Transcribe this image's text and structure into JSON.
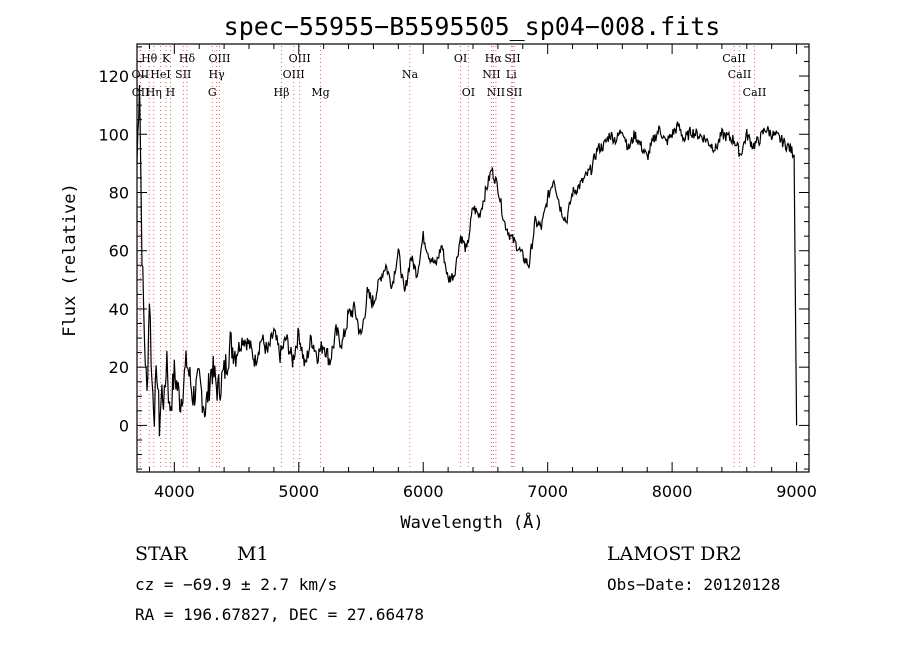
{
  "chart_data": {
    "type": "line",
    "title": "spec−55955−B5595505_sp04−008.fits",
    "xlabel": "Wavelength (Å)",
    "ylabel": "Flux (relative)",
    "xlim": [
      3700,
      9100
    ],
    "ylim": [
      -16,
      131
    ],
    "x_ticks": [
      4000,
      5000,
      6000,
      7000,
      8000,
      9000
    ],
    "y_ticks": [
      0,
      20,
      40,
      60,
      80,
      100,
      120
    ],
    "grid": false,
    "series": [
      {
        "x": [
          3700,
          3720,
          3740,
          3760,
          3780,
          3800,
          3820,
          3840,
          3860,
          3880,
          3900,
          3920,
          3940,
          3960,
          3980,
          4000,
          4050,
          4100,
          4150,
          4200,
          4250,
          4300,
          4350,
          4400,
          4450,
          4500,
          4550,
          4600,
          4650,
          4700,
          4750,
          4800,
          4850,
          4900,
          4950,
          5000,
          5050,
          5100,
          5150,
          5200,
          5250,
          5300,
          5350,
          5400,
          5450,
          5500,
          5550,
          5600,
          5650,
          5700,
          5750,
          5800,
          5850,
          5900,
          5950,
          6000,
          6050,
          6100,
          6150,
          6200,
          6250,
          6300,
          6350,
          6400,
          6450,
          6500,
          6550,
          6600,
          6650,
          6700,
          6750,
          6800,
          6850,
          6900,
          6950,
          7000,
          7050,
          7100,
          7150,
          7200,
          7250,
          7300,
          7350,
          7400,
          7450,
          7500,
          7550,
          7600,
          7650,
          7700,
          7750,
          7800,
          7850,
          7900,
          7950,
          8000,
          8050,
          8100,
          8150,
          8200,
          8250,
          8300,
          8350,
          8400,
          8450,
          8500,
          8550,
          8600,
          8650,
          8700,
          8750,
          8800,
          8850,
          8900,
          8950,
          8980,
          9000
        ],
        "y": [
          90,
          120,
          60,
          30,
          10,
          45,
          15,
          5,
          20,
          0,
          12,
          8,
          25,
          5,
          10,
          18,
          8,
          22,
          10,
          15,
          5,
          20,
          12,
          18,
          28,
          25,
          30,
          28,
          22,
          30,
          25,
          32,
          24,
          30,
          22,
          32,
          20,
          30,
          24,
          28,
          22,
          32,
          28,
          38,
          40,
          30,
          45,
          42,
          50,
          55,
          48,
          60,
          45,
          58,
          52,
          65,
          58,
          55,
          62,
          50,
          52,
          65,
          60,
          75,
          72,
          80,
          88,
          82,
          70,
          65,
          62,
          58,
          55,
          70,
          68,
          78,
          85,
          75,
          70,
          80,
          82,
          85,
          88,
          95,
          96,
          100,
          98,
          102,
          95,
          100,
          96,
          92,
          98,
          102,
          97,
          100,
          103,
          98,
          101,
          100,
          99,
          97,
          95,
          100,
          99,
          98,
          93,
          100,
          96,
          98,
          102,
          100,
          99,
          97,
          95,
          93,
          0
        ]
      }
    ],
    "lines": [
      {
        "label": "Hθ",
        "x": 3798,
        "row": 1
      },
      {
        "label": "OII",
        "x": 3727,
        "row": 2
      },
      {
        "label": "OII",
        "x": 3729,
        "row": 3
      },
      {
        "label": "Hη",
        "x": 3835,
        "row": 3
      },
      {
        "label": "K",
        "x": 3934,
        "row": 1
      },
      {
        "label": "HeI",
        "x": 3889,
        "row": 2
      },
      {
        "label": "H",
        "x": 3969,
        "row": 3
      },
      {
        "label": "SII",
        "x": 4072,
        "row": 2
      },
      {
        "label": "Hδ",
        "x": 4102,
        "row": 1
      },
      {
        "label": "OIII",
        "x": 4363,
        "row": 1
      },
      {
        "label": "Hγ",
        "x": 4340,
        "row": 2
      },
      {
        "label": "G",
        "x": 4305,
        "row": 3
      },
      {
        "label": "OIII",
        "x": 5007,
        "row": 1
      },
      {
        "label": "OIII",
        "x": 4959,
        "row": 2
      },
      {
        "label": "Hβ",
        "x": 4861,
        "row": 3
      },
      {
        "label": "Mg",
        "x": 5175,
        "row": 3
      },
      {
        "label": "Na",
        "x": 5893,
        "row": 2
      },
      {
        "label": "OI",
        "x": 6300,
        "row": 1
      },
      {
        "label": "OI",
        "x": 6363,
        "row": 3
      },
      {
        "label": "Hα",
        "x": 6563,
        "row": 1
      },
      {
        "label": "NII",
        "x": 6548,
        "row": 2
      },
      {
        "label": "NII",
        "x": 6584,
        "row": 3
      },
      {
        "label": "SII",
        "x": 6717,
        "row": 1
      },
      {
        "label": "Li",
        "x": 6708,
        "row": 2
      },
      {
        "label": "SII",
        "x": 6731,
        "row": 3
      },
      {
        "label": "CaII",
        "x": 8498,
        "row": 1
      },
      {
        "label": "CaII",
        "x": 8542,
        "row": 2
      },
      {
        "label": "CaII",
        "x": 8662,
        "row": 3
      }
    ]
  },
  "info": {
    "object_class": "STAR",
    "subclass": "M1",
    "survey": "LAMOST  DR2",
    "velocity": "cz = −69.9 ± 2.7 km/s",
    "obs_date": "Obs−Date: 20120128",
    "coords": "RA = 196.67827, DEC =  27.66478"
  },
  "colors": {
    "spectrum": "#000000",
    "line_marker": "#e06060"
  }
}
